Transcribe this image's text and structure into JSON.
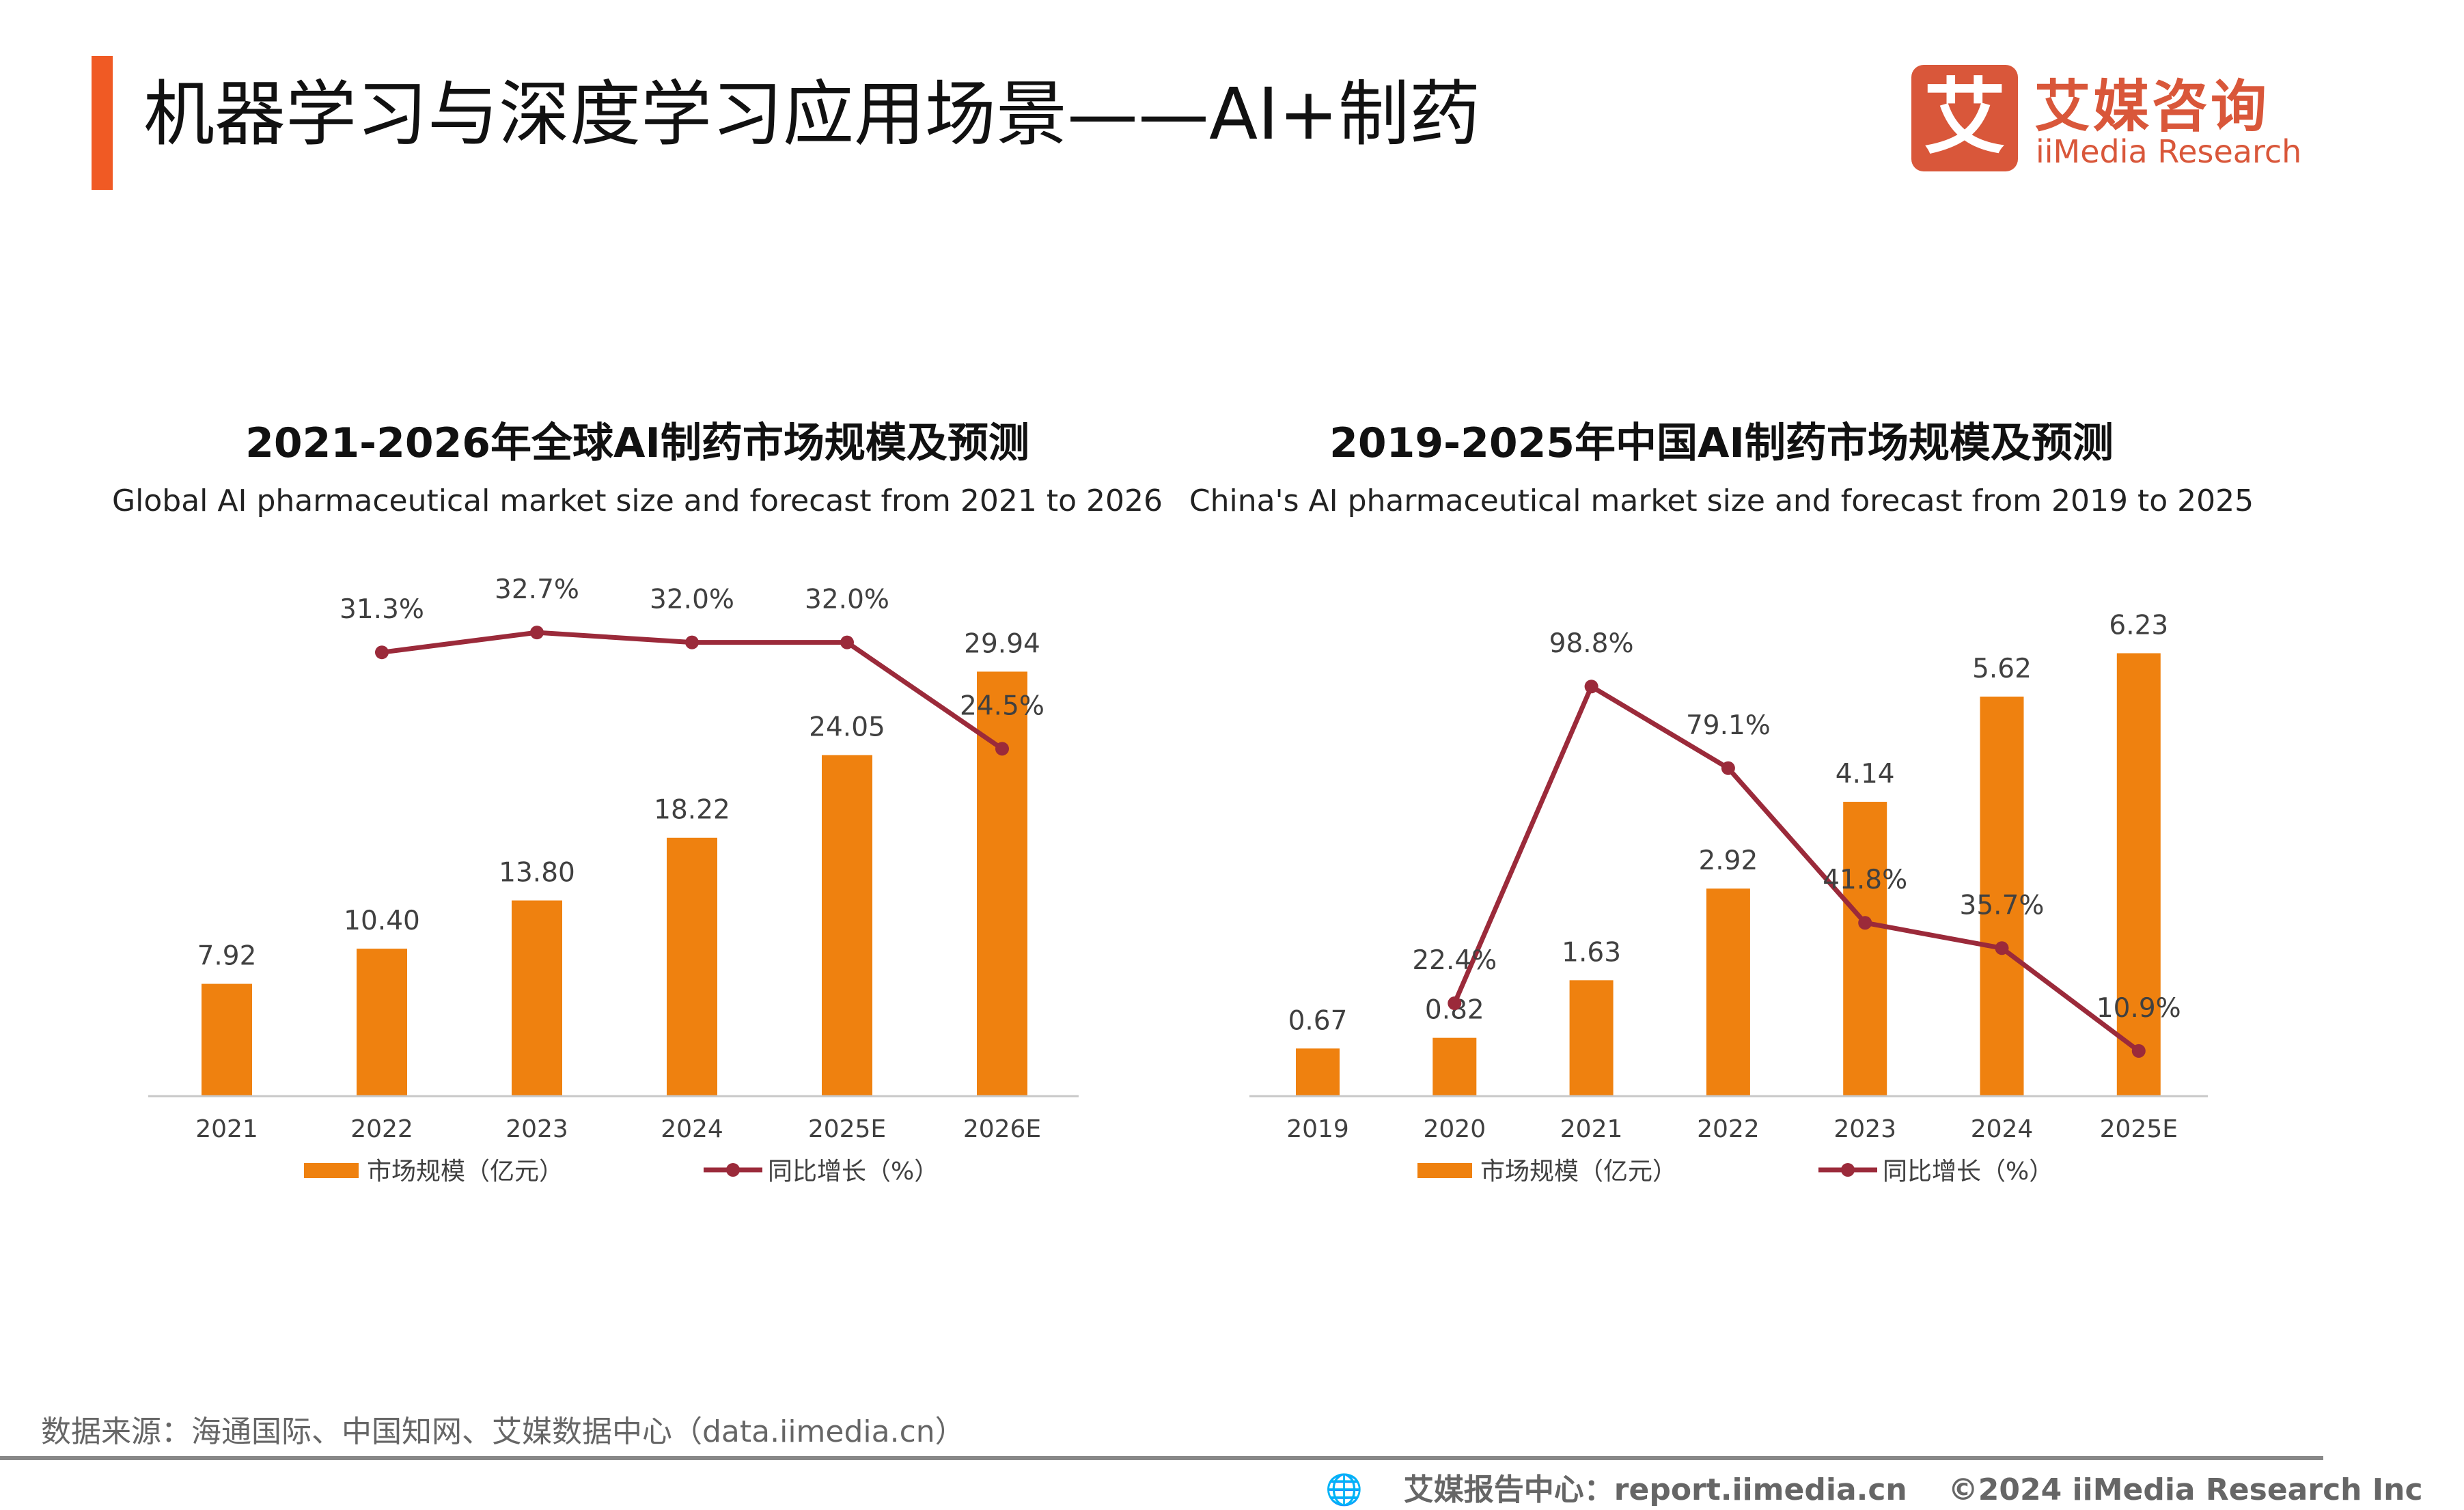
{
  "header": {
    "title": "机器学习与深度学习应用场景——AI+制药",
    "accent_color": "#f05a24",
    "logo": {
      "mark": "艾",
      "cn": "艾媒咨询",
      "en": "iiMedia Research",
      "color": "#d9573a"
    }
  },
  "chart_data": [
    {
      "type": "bar+line",
      "title": "2021-2026年全球AI制药市场规模及预测",
      "subtitle": "Global AI pharmaceutical market size and forecast from 2021 to 2026",
      "categories": [
        "2021",
        "2022",
        "2023",
        "2024",
        "2025E",
        "2026E"
      ],
      "series": [
        {
          "name": "市场规模（亿元）",
          "type": "bar",
          "color": "#ef810f",
          "values": [
            7.92,
            10.4,
            13.8,
            18.22,
            24.05,
            29.94
          ],
          "labels": [
            "7.92",
            "10.40",
            "13.80",
            "18.22",
            "24.05",
            "29.94"
          ]
        },
        {
          "name": "同比增长（%）",
          "type": "line",
          "color": "#9b2a3a",
          "values": [
            null,
            31.3,
            32.7,
            32.0,
            32.0,
            24.5
          ],
          "labels": [
            "",
            "31.3%",
            "32.7%",
            "32.0%",
            "32.0%",
            "24.5%"
          ]
        }
      ],
      "ylim_bar": [
        0,
        35.5
      ],
      "ylim_line": [
        0,
        35.5
      ],
      "grid": false,
      "legend": "bottom"
    },
    {
      "type": "bar+line",
      "title": "2019-2025年中国AI制药市场规模及预测",
      "subtitle": "China's AI pharmaceutical market size and forecast from 2019 to 2025",
      "categories": [
        "2019",
        "2020",
        "2021",
        "2022",
        "2023",
        "2024",
        "2025E"
      ],
      "series": [
        {
          "name": "市场规模（亿元）",
          "type": "bar",
          "color": "#ef810f",
          "values": [
            0.67,
            0.82,
            1.63,
            2.92,
            4.14,
            5.62,
            6.23
          ],
          "labels": [
            "0.67",
            "0.82",
            "1.63",
            "2.92",
            "4.14",
            "5.62",
            "6.23"
          ]
        },
        {
          "name": "同比增长（%）",
          "type": "line",
          "color": "#9b2a3a",
          "values": [
            null,
            22.4,
            98.8,
            79.1,
            41.8,
            35.7,
            10.9
          ],
          "labels": [
            "",
            "22.4%",
            "98.8%",
            "79.1%",
            "41.8%",
            "35.7%",
            "10.9%"
          ]
        }
      ],
      "ylim_bar": [
        0,
        7.08
      ],
      "ylim_line": [
        0,
        121.4
      ],
      "grid": false,
      "legend": "bottom"
    }
  ],
  "footer": {
    "source": "数据来源：海通国际、中国知网、艾媒数据中心（data.iimedia.cn）",
    "report_center": "艾媒报告中心：report.iimedia.cn",
    "copyright": "©2024  iiMedia Research  Inc"
  }
}
